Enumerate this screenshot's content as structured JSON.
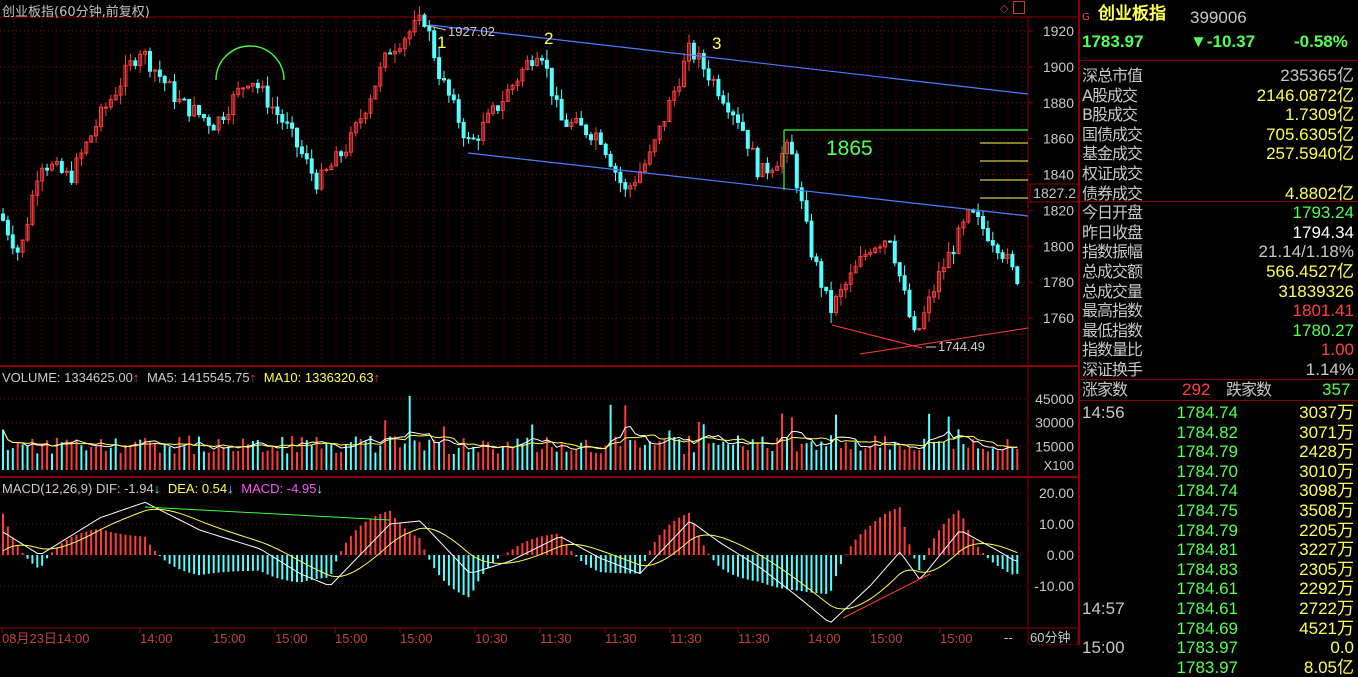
{
  "window": {
    "title": "创业板指(60分钟,前复权)",
    "timeframe": "60分钟",
    "dash": "--"
  },
  "price_axis": {
    "labels": [
      "1920",
      "1900",
      "1880",
      "1860",
      "1840",
      "1820",
      "1800",
      "1780",
      "1760"
    ],
    "marker_label": "1827.2"
  },
  "volume_axis": {
    "labels": [
      "45000",
      "30000",
      "15000"
    ],
    "unit": "X100"
  },
  "macd_axis": {
    "labels": [
      "20.00",
      "10.00",
      "0.00",
      "-10.00"
    ]
  },
  "time_axis": [
    "08月23日14:00",
    "14:00",
    "15:00",
    "15:00",
    "15:00",
    "15:00",
    "10:30",
    "11:30",
    "11:30",
    "11:30",
    "11:30",
    "14:00",
    "15:00",
    "15:00"
  ],
  "annotations": {
    "high_label": "1927.02",
    "low_label": "1744.49",
    "wave1": "1",
    "wave2": "2",
    "wave3": "3",
    "target": "1865"
  },
  "volume_header": {
    "volume": "VOLUME: 1334625.00",
    "ma5": "MA5: 1415545.75",
    "ma10": "MA10: 1336320.63"
  },
  "macd_header": {
    "title": "MACD(12,26,9)",
    "dif": "DIF: -1.94",
    "dea": "DEA: 0.54",
    "macd": "MACD: -4.95"
  },
  "quote": {
    "name": "创业板指",
    "code": "399006",
    "price": "1783.97",
    "change": "▼-10.37",
    "change_pct": "-0.58%"
  },
  "stats": [
    {
      "label": "深总市值",
      "value": "235365亿",
      "color": "#c8c8c8"
    },
    {
      "label": "A股成交",
      "value": "2146.0872亿",
      "color": "#ffff54"
    },
    {
      "label": "B股成交",
      "value": "1.7309亿",
      "color": "#ffff54"
    },
    {
      "label": "国债成交",
      "value": "705.6305亿",
      "color": "#ffff54"
    },
    {
      "label": "基金成交",
      "value": "257.5940亿",
      "color": "#ffff54"
    },
    {
      "label": "权证成交",
      "value": "",
      "color": "#ffff54"
    },
    {
      "label": "债券成交",
      "value": "4.8802亿",
      "color": "#ffff54"
    },
    {
      "label": "今日开盘",
      "value": "1793.24",
      "color": "#54ff54"
    },
    {
      "label": "昨日收盘",
      "value": "1794.34",
      "color": "#ffffff"
    },
    {
      "label": "指数振幅",
      "value": "21.14/1.18%",
      "color": "#c8c8c8"
    },
    {
      "label": "总成交额",
      "value": "566.4527亿",
      "color": "#ffff54"
    },
    {
      "label": "总成交量",
      "value": "31839326",
      "color": "#ffff54"
    },
    {
      "label": "最高指数",
      "value": "1801.41",
      "color": "#ff4040"
    },
    {
      "label": "最低指数",
      "value": "1780.27",
      "color": "#54ff54"
    },
    {
      "label": "指数量比",
      "value": "1.00",
      "color": "#ff4040"
    },
    {
      "label": "深证换手",
      "value": "1.14%",
      "color": "#c8c8c8"
    }
  ],
  "breadth": {
    "up_label": "涨家数",
    "up": "292",
    "down_label": "跌家数",
    "down": "357"
  },
  "ticks": [
    {
      "time": "14:56",
      "price": "1784.74",
      "vol": "3037万"
    },
    {
      "time": "",
      "price": "1784.82",
      "vol": "3071万"
    },
    {
      "time": "",
      "price": "1784.79",
      "vol": "2428万"
    },
    {
      "time": "",
      "price": "1784.70",
      "vol": "3010万"
    },
    {
      "time": "",
      "price": "1784.74",
      "vol": "3098万"
    },
    {
      "time": "",
      "price": "1784.75",
      "vol": "3508万"
    },
    {
      "time": "",
      "price": "1784.79",
      "vol": "2205万"
    },
    {
      "time": "",
      "price": "1784.81",
      "vol": "3227万"
    },
    {
      "time": "",
      "price": "1784.83",
      "vol": "2305万"
    },
    {
      "time": "",
      "price": "1784.61",
      "vol": "2292万"
    },
    {
      "time": "14:57",
      "price": "1784.61",
      "vol": "2722万"
    },
    {
      "time": "",
      "price": "1784.69",
      "vol": "4521万"
    },
    {
      "time": "15:00",
      "price": "1783.97",
      "vol": "0.0"
    },
    {
      "time": "",
      "price": "1783.97",
      "vol": "8.05亿"
    }
  ],
  "colors": {
    "up": "#ff3c3c",
    "down": "#54ffff",
    "grid": "#8b0000",
    "ma5": "#ffffff",
    "ma10": "#ffff54"
  }
}
